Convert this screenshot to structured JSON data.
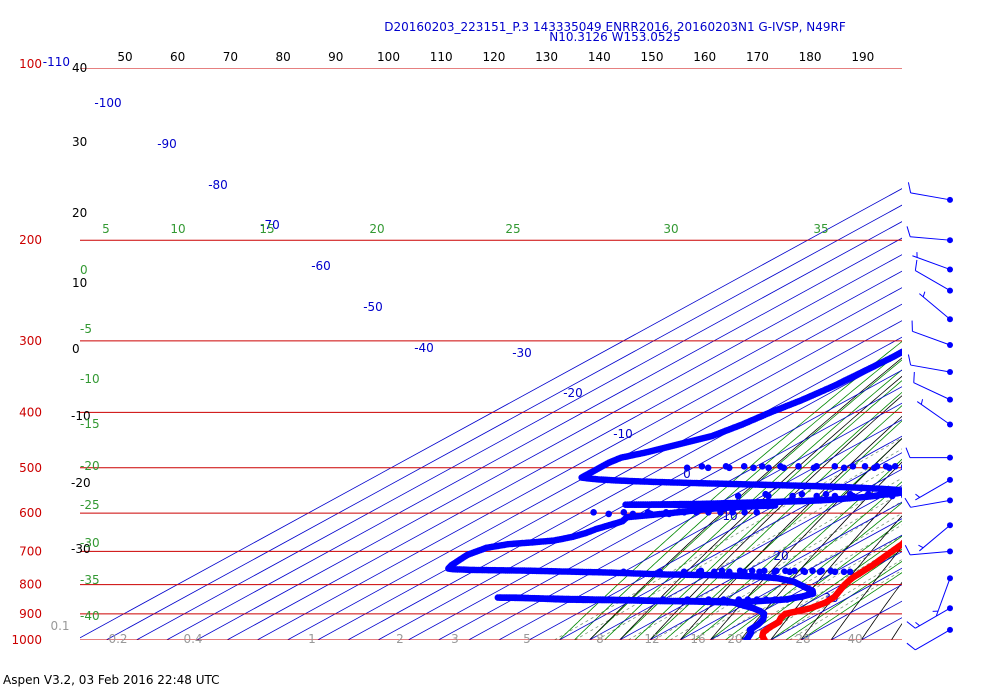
{
  "title_line1": "D20160203_223151_P.3 143335049 ENRR2016, 20160203N1 G-IVSP, N49RF",
  "title_line2": "N10.3126 W153.0525",
  "footer": "Aspen V3.2, 03 Feb 2016  22:48 UTC",
  "chart_data": {
    "type": "scatter",
    "title": "D20160203_223151_P.3 143335049 ENRR2016, 20160203N1 G-IVSP, N49RF",
    "subtitle": "N10.3126 W153.0525",
    "colors": {
      "temperature": "#ff0000",
      "dewpoint": "#0000ff",
      "isobar": "#cc0000",
      "isotherm": "#0000cc",
      "dry_adiabat": "#000000",
      "moist_adiabat": "#008800",
      "mixing_ratio": "#008800",
      "barb": "#0000ff",
      "grid_text": "#000000"
    },
    "pressure_labels": [
      "100",
      "200",
      "300",
      "400",
      "500",
      "600",
      "700",
      "800",
      "900",
      "1000"
    ],
    "top_temperature_labels": [
      "50",
      "60",
      "70",
      "80",
      "90",
      "100",
      "110",
      "120",
      "130",
      "140",
      "150",
      "160",
      "170",
      "180",
      "190"
    ],
    "left_extra_label": "-110",
    "left_black_labels": [
      "40",
      "30",
      "20",
      "10",
      "0",
      "-10",
      "-20",
      "-30"
    ],
    "left_green_labels": [
      "0",
      "-5",
      "-10",
      "-15",
      "-20",
      "-25",
      "-30",
      "-35",
      "-40"
    ],
    "isotherm_labels": [
      "-100",
      "-90",
      "-80",
      "-70",
      "-60",
      "-50",
      "-40",
      "-30",
      "-20",
      "-10",
      "0",
      "10",
      "20",
      "30"
    ],
    "theta_e_labels": [
      "5",
      "10",
      "15",
      "20",
      "25",
      "30",
      "35"
    ],
    "mixing_ratio_labels": [
      "0.1",
      "0.2",
      "0.4",
      "1",
      "2",
      "3",
      "5",
      "8",
      "12",
      "16",
      "20",
      "28",
      "40"
    ],
    "temperature_profile": [
      [
        1000,
        28
      ],
      [
        985,
        25
      ],
      [
        970,
        23
      ],
      [
        950,
        22
      ],
      [
        930,
        21.8
      ],
      [
        915,
        20
      ],
      [
        900,
        19
      ],
      [
        880,
        24
      ],
      [
        860,
        25.5
      ],
      [
        840,
        25
      ],
      [
        820,
        23
      ],
      [
        800,
        21
      ],
      [
        780,
        19.5
      ],
      [
        760,
        19
      ],
      [
        740,
        18.5
      ],
      [
        720,
        17.5
      ],
      [
        700,
        16.5
      ],
      [
        680,
        15.5
      ],
      [
        660,
        13.5
      ],
      [
        640,
        11
      ],
      [
        620,
        9
      ],
      [
        600,
        8
      ],
      [
        580,
        6.5
      ],
      [
        560,
        5
      ],
      [
        540,
        3
      ],
      [
        520,
        0.5
      ],
      [
        500,
        -3
      ],
      [
        480,
        -5
      ],
      [
        460,
        -8
      ],
      [
        440,
        -10
      ],
      [
        420,
        -13
      ],
      [
        400,
        -16
      ],
      [
        380,
        -20.5
      ],
      [
        360,
        -25
      ],
      [
        340,
        -29.5
      ],
      [
        320,
        -34
      ],
      [
        300,
        -38.5
      ],
      [
        280,
        -43.5
      ],
      [
        260,
        -48.5
      ],
      [
        240,
        -52
      ],
      [
        230,
        -54
      ],
      [
        220,
        -57
      ],
      [
        210,
        -59
      ],
      [
        200,
        -61.5
      ],
      [
        170,
        -68
      ]
    ],
    "dewpoint_profile": [
      [
        1000,
        22
      ],
      [
        990,
        21
      ],
      [
        980,
        20
      ],
      [
        970,
        19
      ],
      [
        960,
        17
      ],
      [
        940,
        16.5
      ],
      [
        920,
        15
      ],
      [
        900,
        12
      ],
      [
        890,
        9
      ],
      [
        880,
        5
      ],
      [
        870,
        0
      ],
      [
        860,
        -5
      ],
      [
        855,
        -8
      ],
      [
        855,
        -20
      ],
      [
        855,
        -30
      ],
      [
        853,
        -38
      ],
      [
        852,
        -45
      ],
      [
        851,
        -55
      ],
      [
        850,
        -62
      ],
      [
        848,
        -68
      ],
      [
        845,
        -75
      ],
      [
        843,
        -80
      ],
      [
        843,
        -86
      ],
      [
        845,
        -75
      ],
      [
        850,
        -50
      ],
      [
        855,
        -25
      ],
      [
        860,
        -5
      ],
      [
        850,
        10
      ],
      [
        840,
        14
      ],
      [
        830,
        16
      ],
      [
        820,
        14
      ],
      [
        810,
        10
      ],
      [
        800,
        6
      ],
      [
        790,
        2
      ],
      [
        780,
        -5
      ],
      [
        775,
        -12
      ],
      [
        772,
        -20
      ],
      [
        770,
        -30
      ],
      [
        768,
        -45
      ],
      [
        765,
        -55
      ],
      [
        762,
        -65
      ],
      [
        760,
        -75
      ],
      [
        758,
        -85
      ],
      [
        756,
        -95
      ],
      [
        755,
        -105
      ],
      [
        754,
        -112
      ],
      [
        752,
        -118
      ],
      [
        750,
        -120
      ],
      [
        740,
        -121
      ],
      [
        710,
        -122
      ],
      [
        690,
        -120
      ],
      [
        680,
        -115
      ],
      [
        675,
        -108
      ],
      [
        670,
        -102
      ],
      [
        660,
        -98
      ],
      [
        650,
        -96
      ],
      [
        640,
        -95
      ],
      [
        630,
        -93
      ],
      [
        620,
        -91
      ],
      [
        610,
        -92
      ],
      [
        605,
        -86
      ],
      [
        600,
        -80
      ],
      [
        590,
        -70
      ],
      [
        585,
        -60
      ],
      [
        583,
        -55
      ],
      [
        582,
        -50
      ],
      [
        582,
        -60
      ],
      [
        582,
        -70
      ],
      [
        581,
        -80
      ],
      [
        580,
        -85
      ],
      [
        580,
        -95
      ],
      [
        580,
        -100
      ],
      [
        579,
        -85
      ],
      [
        578,
        -75
      ],
      [
        576,
        -65
      ],
      [
        574,
        -55
      ],
      [
        572,
        -45
      ],
      [
        570,
        -38
      ],
      [
        568,
        -34
      ],
      [
        566,
        -31
      ],
      [
        564,
        -28
      ],
      [
        562,
        -25
      ],
      [
        560,
        -23
      ],
      [
        558,
        -22
      ],
      [
        556,
        -19
      ],
      [
        554,
        -17
      ],
      [
        552,
        -16
      ],
      [
        550,
        -15
      ],
      [
        548,
        -17
      ],
      [
        546,
        -20
      ],
      [
        544,
        -25
      ],
      [
        542,
        -32
      ],
      [
        540,
        -40
      ],
      [
        538,
        -50
      ],
      [
        536,
        -62
      ],
      [
        534,
        -75
      ],
      [
        532,
        -88
      ],
      [
        530,
        -100
      ],
      [
        528,
        -110
      ],
      [
        526,
        -118
      ],
      [
        524,
        -124
      ],
      [
        522,
        -128
      ],
      [
        520,
        -131
      ],
      [
        510,
        -131
      ],
      [
        500,
        -131
      ],
      [
        490,
        -131
      ],
      [
        480,
        -130
      ],
      [
        470,
        -125
      ],
      [
        460,
        -121
      ],
      [
        450,
        -117
      ],
      [
        440,
        -113
      ],
      [
        420,
        -110
      ],
      [
        400,
        -108
      ],
      [
        380,
        -105
      ],
      [
        360,
        -103
      ],
      [
        340,
        -102
      ],
      [
        320,
        -101
      ],
      [
        300,
        -101
      ],
      [
        280,
        -100
      ],
      [
        260,
        -100
      ],
      [
        240,
        -100
      ],
      [
        220,
        -99
      ],
      [
        200,
        -99
      ],
      [
        190,
        -98
      ],
      [
        185,
        -98
      ]
    ],
    "dewpoint_extra_points": [
      [
        500,
        -102
      ],
      [
        500,
        -95
      ],
      [
        500,
        -88
      ],
      [
        500,
        -80
      ],
      [
        500,
        -75
      ],
      [
        500,
        -70
      ],
      [
        500,
        -60
      ],
      [
        500,
        -50
      ],
      [
        500,
        -40
      ],
      [
        500,
        -35
      ],
      [
        500,
        -30
      ],
      [
        500,
        -25
      ],
      [
        500,
        -20
      ],
      [
        500,
        -18
      ],
      [
        500,
        -16
      ],
      [
        500,
        -14
      ],
      [
        500,
        -12
      ],
      [
        500,
        -10
      ],
      [
        500,
        -8
      ],
      [
        500,
        -6
      ],
      [
        497,
        -98
      ],
      [
        497,
        -90
      ],
      [
        497,
        -84
      ],
      [
        497,
        -78
      ],
      [
        497,
        -72
      ],
      [
        497,
        -66
      ],
      [
        497,
        -60
      ],
      [
        497,
        -54
      ],
      [
        497,
        -48
      ],
      [
        497,
        -44
      ],
      [
        497,
        -40
      ],
      [
        497,
        -37
      ],
      [
        497,
        -34
      ],
      [
        497,
        -31
      ],
      [
        497,
        -28
      ],
      [
        560,
        -68
      ],
      [
        560,
        -58
      ],
      [
        560,
        -50
      ],
      [
        560,
        -42
      ],
      [
        560,
        -36
      ],
      [
        560,
        -30
      ],
      [
        560,
        -22
      ],
      [
        560,
        -17
      ],
      [
        560,
        -13
      ],
      [
        560,
        -9
      ],
      [
        560,
        -6
      ],
      [
        560,
        -3
      ],
      [
        560,
        0
      ],
      [
        560,
        3
      ],
      [
        560,
        6
      ],
      [
        556,
        -60
      ],
      [
        556,
        -48
      ],
      [
        556,
        -40
      ],
      [
        556,
        -32
      ],
      [
        556,
        -26
      ],
      [
        556,
        -22
      ],
      [
        556,
        -18
      ],
      [
        556,
        -12
      ],
      [
        556,
        -8
      ],
      [
        598,
        -106
      ],
      [
        598,
        -96
      ],
      [
        598,
        -88
      ],
      [
        598,
        -82
      ],
      [
        598,
        -76
      ],
      [
        598,
        -72
      ],
      [
        598,
        -68
      ],
      [
        598,
        -64
      ],
      [
        598,
        -60
      ],
      [
        598,
        -56
      ],
      [
        598,
        -52
      ],
      [
        602,
        -100
      ],
      [
        602,
        -92
      ],
      [
        602,
        -86
      ],
      [
        602,
        -80
      ],
      [
        760,
        -60
      ],
      [
        760,
        -48
      ],
      [
        760,
        -40
      ],
      [
        760,
        -35
      ],
      [
        760,
        -30
      ],
      [
        760,
        -25
      ],
      [
        760,
        -20
      ],
      [
        760,
        -15
      ],
      [
        760,
        -10
      ],
      [
        760,
        -5
      ],
      [
        760,
        0
      ],
      [
        760,
        5
      ],
      [
        760,
        10
      ],
      [
        760,
        13
      ],
      [
        760,
        15
      ],
      [
        757,
        -35
      ],
      [
        757,
        -28
      ],
      [
        757,
        -22
      ],
      [
        757,
        -18
      ],
      [
        757,
        -14
      ],
      [
        757,
        -10
      ],
      [
        757,
        -7
      ],
      [
        757,
        -4
      ],
      [
        757,
        -1
      ],
      [
        757,
        2
      ],
      [
        757,
        5
      ],
      [
        757,
        8
      ],
      [
        850,
        -30
      ],
      [
        850,
        -22
      ],
      [
        850,
        -15
      ],
      [
        850,
        -10
      ],
      [
        850,
        -5
      ],
      [
        850,
        -2
      ],
      [
        850,
        1
      ],
      [
        850,
        4
      ],
      [
        850,
        7
      ],
      [
        850,
        9
      ],
      [
        850,
        11
      ]
    ],
    "extra_temperature_point": [
      185,
      -80
    ],
    "wind_barbs": [
      {
        "p": 170,
        "dir": 280,
        "speed": 10
      },
      {
        "p": 200,
        "dir": 275,
        "speed": 10
      },
      {
        "p": 225,
        "dir": 290,
        "speed": 5
      },
      {
        "p": 245,
        "dir": 300,
        "speed": 10
      },
      {
        "p": 275,
        "dir": 310,
        "speed": 5
      },
      {
        "p": 305,
        "dir": 290,
        "speed": 10
      },
      {
        "p": 340,
        "dir": 280,
        "speed": 10
      },
      {
        "p": 380,
        "dir": 295,
        "speed": 10
      },
      {
        "p": 420,
        "dir": 305,
        "speed": 5
      },
      {
        "p": 480,
        "dir": 270,
        "speed": 10
      },
      {
        "p": 525,
        "dir": 240,
        "speed": 5
      },
      {
        "p": 570,
        "dir": 260,
        "speed": 10
      },
      {
        "p": 630,
        "dir": 230,
        "speed": 5
      },
      {
        "p": 700,
        "dir": 265,
        "speed": 10
      },
      {
        "p": 780,
        "dir": 200,
        "speed": 5
      },
      {
        "p": 880,
        "dir": 240,
        "speed": 15
      },
      {
        "p": 960,
        "dir": 240,
        "speed": 10
      }
    ]
  }
}
